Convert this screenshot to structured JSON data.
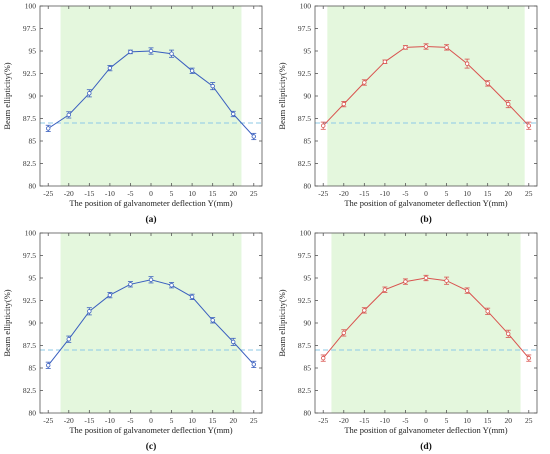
{
  "colors": {
    "blue_series": "#3a5fbf",
    "red_series": "#d9534f",
    "shade": "#e4f7dd",
    "threshold": "#8cc8e6",
    "axis": "#555555"
  },
  "chart_data": [
    {
      "type": "line",
      "caption": "(a)",
      "xlabel": "The position of galvanometer deflection Y(mm)",
      "ylabel": "Beam ellipticity(%)",
      "xticks": [
        -25,
        -20,
        -15,
        -10,
        -5,
        0,
        5,
        10,
        15,
        20,
        25
      ],
      "yticks": [
        "80",
        "82.5",
        "85",
        "87.5",
        "90",
        "92.5",
        "95",
        "97.5",
        "100"
      ],
      "xlim": [
        -27,
        27
      ],
      "ylim": [
        80,
        100
      ],
      "grid": false,
      "shaded_x_range": [
        -22,
        22
      ],
      "threshold_y": 87,
      "series_color": "#3a5fbf",
      "series": [
        {
          "x": [
            -25,
            -20,
            -15,
            -10,
            -5,
            0,
            5,
            10,
            15,
            20,
            25
          ],
          "y": [
            86.4,
            87.9,
            90.3,
            93.1,
            94.9,
            95.0,
            94.7,
            92.8,
            91.1,
            88.0,
            85.5
          ],
          "err": [
            0.35,
            0.35,
            0.4,
            0.3,
            0.2,
            0.35,
            0.4,
            0.3,
            0.4,
            0.3,
            0.35
          ]
        }
      ]
    },
    {
      "type": "line",
      "caption": "(b)",
      "xlabel": "The position of galvanometer deflection Y(mm)",
      "ylabel": "Beam ellipticity(%)",
      "xticks": [
        -25,
        -20,
        -15,
        -10,
        -5,
        0,
        5,
        10,
        15,
        20,
        25
      ],
      "yticks": [
        "80",
        "82.5",
        "85",
        "87.5",
        "90",
        "92.5",
        "95",
        "97.5",
        "100"
      ],
      "xlim": [
        -27,
        27
      ],
      "ylim": [
        80,
        100
      ],
      "grid": false,
      "shaded_x_range": [
        -24,
        24
      ],
      "threshold_y": 87,
      "series_color": "#d9534f",
      "series": [
        {
          "x": [
            -25,
            -20,
            -15,
            -10,
            -5,
            0,
            5,
            10,
            15,
            20,
            25
          ],
          "y": [
            86.7,
            89.1,
            91.5,
            93.8,
            95.4,
            95.5,
            95.4,
            93.6,
            91.4,
            89.1,
            86.7
          ],
          "err": [
            0.4,
            0.3,
            0.3,
            0.2,
            0.2,
            0.3,
            0.3,
            0.5,
            0.3,
            0.4,
            0.4
          ]
        }
      ]
    },
    {
      "type": "line",
      "caption": "(c)",
      "xlabel": "The position of galvanometer deflection Y(mm)",
      "ylabel": "Beam ellipticity(%)",
      "xticks": [
        -25,
        -20,
        -15,
        -10,
        -5,
        0,
        5,
        10,
        15,
        20,
        25
      ],
      "yticks": [
        "80",
        "82.5",
        "85",
        "87.5",
        "90",
        "92.5",
        "95",
        "97.5",
        "100"
      ],
      "xlim": [
        -27,
        27
      ],
      "ylim": [
        80,
        100
      ],
      "grid": false,
      "shaded_x_range": [
        -22,
        22
      ],
      "threshold_y": 87,
      "series_color": "#3a5fbf",
      "series": [
        {
          "x": [
            -25,
            -20,
            -15,
            -10,
            -5,
            0,
            5,
            10,
            15,
            20,
            25
          ],
          "y": [
            85.3,
            88.2,
            91.3,
            93.1,
            94.3,
            94.8,
            94.2,
            92.9,
            90.3,
            87.9,
            85.4
          ],
          "err": [
            0.35,
            0.35,
            0.4,
            0.3,
            0.3,
            0.35,
            0.3,
            0.3,
            0.3,
            0.4,
            0.35
          ]
        }
      ]
    },
    {
      "type": "line",
      "caption": "(d)",
      "xlabel": "The position of galvanometer deflection Y(mm)",
      "ylabel": "Beam ellipticity(%)",
      "xticks": [
        -25,
        -20,
        -15,
        -10,
        -5,
        0,
        5,
        10,
        15,
        20,
        25
      ],
      "yticks": [
        "80",
        "82.5",
        "85",
        "87.5",
        "90",
        "92.5",
        "95",
        "97.5",
        "100"
      ],
      "xlim": [
        -27,
        27
      ],
      "ylim": [
        80,
        100
      ],
      "grid": false,
      "shaded_x_range": [
        -23,
        23
      ],
      "threshold_y": 87,
      "series_color": "#d9534f",
      "series": [
        {
          "x": [
            -25,
            -20,
            -15,
            -10,
            -5,
            0,
            5,
            10,
            15,
            20,
            25
          ],
          "y": [
            86.1,
            88.9,
            91.4,
            93.7,
            94.6,
            95.0,
            94.7,
            93.6,
            91.3,
            88.8,
            86.1
          ],
          "err": [
            0.35,
            0.35,
            0.3,
            0.3,
            0.3,
            0.3,
            0.4,
            0.3,
            0.35,
            0.4,
            0.35
          ]
        }
      ]
    }
  ]
}
